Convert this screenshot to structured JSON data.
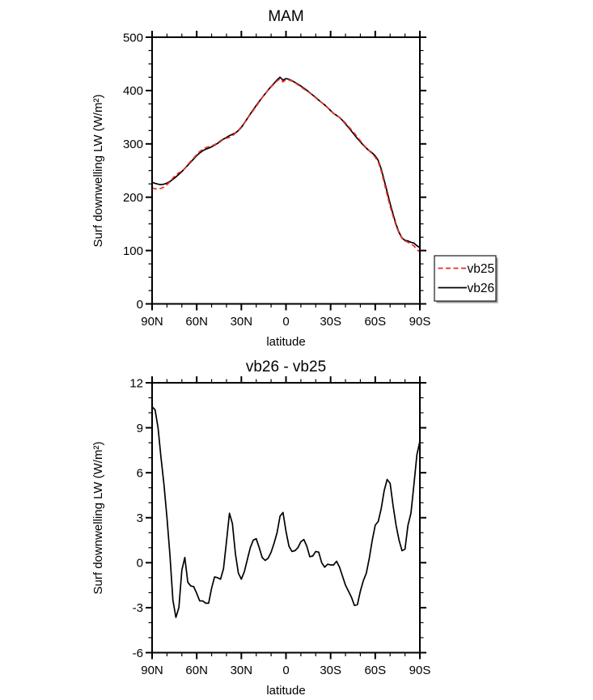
{
  "figure": {
    "background": "#ffffff",
    "accent_red": "#ee2c2c",
    "line_black": "#000000"
  },
  "chart_data": [
    {
      "type": "line",
      "title": "MAM",
      "x_axis": {
        "label": "latitude",
        "tick_lats": [
          90,
          60,
          30,
          0,
          -30,
          -60,
          -90
        ],
        "tick_labels": [
          "90N",
          "60N",
          "30N",
          "0",
          "30S",
          "60S",
          "90S"
        ],
        "minor_step_deg": 10,
        "lim": [
          90,
          -90
        ]
      },
      "y_axis": {
        "label": "Surf downwelling LW (W/m²)",
        "lim": [
          0,
          500
        ],
        "ticks": [
          0,
          100,
          200,
          300,
          400,
          500
        ],
        "minor_step": 25
      },
      "legend": {
        "position": "outside-right",
        "entries": [
          {
            "label": "vb25",
            "color": "#ee2c2c",
            "style": "dashed"
          },
          {
            "label": "vb26",
            "color": "#000000",
            "style": "solid"
          }
        ]
      },
      "x": [
        90,
        88,
        86,
        84,
        82,
        80,
        78,
        76,
        74,
        72,
        70,
        68,
        66,
        64,
        62,
        60,
        58,
        56,
        54,
        52,
        50,
        48,
        46,
        44,
        42,
        40,
        38,
        36,
        34,
        32,
        30,
        28,
        26,
        24,
        22,
        20,
        18,
        16,
        14,
        12,
        10,
        8,
        6,
        4,
        2,
        0,
        -2,
        -4,
        -6,
        -8,
        -10,
        -12,
        -14,
        -16,
        -18,
        -20,
        -22,
        -24,
        -26,
        -28,
        -30,
        -32,
        -34,
        -36,
        -38,
        -40,
        -42,
        -44,
        -46,
        -48,
        -50,
        -52,
        -54,
        -56,
        -58,
        -60,
        -62,
        -64,
        -66,
        -68,
        -70,
        -72,
        -74,
        -76,
        -78,
        -80,
        -82,
        -84,
        -86,
        -88,
        -90
      ],
      "series": [
        {
          "name": "vb25",
          "color": "#ee2c2c",
          "style": "dashed",
          "values": [
            217.6,
            215.8,
            215.5,
            216.5,
            219.3,
            223.5,
            229,
            236,
            241.7,
            246,
            248.5,
            253.7,
            261.3,
            267.6,
            273.6,
            280.1,
            285.6,
            289.6,
            292.7,
            294.7,
            296.2,
            298.5,
            302,
            306.1,
            309.4,
            310.6,
            312.2,
            315.4,
            319.9,
            325.7,
            332.1,
            339.6,
            347.3,
            355,
            362.5,
            370.4,
            378.5,
            386.7,
            393.9,
            400.7,
            406.8,
            412.2,
            418,
            421.9,
            416.2,
            420.4,
            419.9,
            417.8,
            414.7,
            411,
            407.1,
            403,
            399.4,
            395.6,
            391.1,
            386.3,
            381.3,
            377.5,
            373.3,
            368.1,
            362.7,
            357.2,
            353.4,
            349.8,
            344.9,
            339,
            332.9,
            326.3,
            319.9,
            312.8,
            305.9,
            298.7,
            292.7,
            286.7,
            281.5,
            275,
            266.3,
            249.4,
            227.2,
            204.5,
            182.7,
            164.2,
            146.5,
            132.5,
            122.7,
            118.1,
            115.5,
            112.2,
            108.8,
            101.8,
            97.4
          ]
        },
        {
          "name": "vb26",
          "color": "#000000",
          "style": "solid",
          "values": [
            228,
            226,
            224.5,
            223.5,
            224.5,
            226.5,
            229.5,
            233.5,
            238,
            243,
            248,
            254,
            260,
            266,
            272,
            278,
            283,
            287,
            290,
            292,
            294.5,
            297.5,
            301,
            305,
            309,
            312,
            315.5,
            318,
            320.5,
            325,
            331,
            339,
            347.5,
            356,
            364,
            372,
            379.5,
            387,
            394,
            401,
            407.5,
            413.5,
            420,
            425,
            419.5,
            422.5,
            421,
            418.5,
            415.5,
            412,
            408.5,
            404.5,
            400.5,
            396,
            391.5,
            387,
            382,
            377.5,
            373,
            368,
            362.5,
            357,
            353.5,
            349.5,
            344,
            337.5,
            331,
            324,
            317,
            310,
            304,
            297.5,
            292,
            287,
            283,
            277.5,
            269,
            253,
            232,
            210,
            188,
            168,
            149,
            134,
            123.5,
            119,
            118,
            115.5,
            114,
            109,
            105.5
          ]
        }
      ]
    },
    {
      "type": "line",
      "title": "vb26 - vb25",
      "x_axis": {
        "label": "latitude",
        "tick_lats": [
          90,
          60,
          30,
          0,
          -30,
          -60,
          -90
        ],
        "tick_labels": [
          "90N",
          "60N",
          "30N",
          "0",
          "30S",
          "60S",
          "90S"
        ],
        "minor_step_deg": 10,
        "lim": [
          90,
          -90
        ]
      },
      "y_axis": {
        "label": "Surf downwelling LW (W/m²)",
        "lim": [
          -6,
          12
        ],
        "ticks": [
          -6,
          -3,
          0,
          3,
          6,
          9,
          12
        ],
        "minor_step": 1
      },
      "x": [
        90,
        88,
        86,
        84,
        82,
        80,
        78,
        76,
        74,
        72,
        70,
        68,
        66,
        64,
        62,
        60,
        58,
        56,
        54,
        52,
        50,
        48,
        46,
        44,
        42,
        40,
        38,
        36,
        34,
        32,
        30,
        28,
        26,
        24,
        22,
        20,
        18,
        16,
        14,
        12,
        10,
        8,
        6,
        4,
        2,
        0,
        -2,
        -4,
        -6,
        -8,
        -10,
        -12,
        -14,
        -16,
        -18,
        -20,
        -22,
        -24,
        -26,
        -28,
        -30,
        -32,
        -34,
        -36,
        -38,
        -40,
        -42,
        -44,
        -46,
        -48,
        -50,
        -52,
        -54,
        -56,
        -58,
        -60,
        -62,
        -64,
        -66,
        -68,
        -70,
        -72,
        -74,
        -76,
        -78,
        -80,
        -82,
        -84,
        -86,
        -88,
        -90
      ],
      "series": [
        {
          "name": "vb26 - vb25",
          "color": "#000000",
          "style": "solid",
          "values": [
            10.4,
            10.2,
            9,
            7,
            5.2,
            3,
            0.5,
            -2.5,
            -3.65,
            -3,
            -0.5,
            0.35,
            -1.3,
            -1.55,
            -1.6,
            -2.05,
            -2.55,
            -2.55,
            -2.7,
            -2.7,
            -1.7,
            -0.95,
            -1,
            -1.1,
            -0.4,
            1.4,
            3.3,
            2.6,
            0.6,
            -0.7,
            -1.1,
            -0.6,
            0.2,
            1,
            1.5,
            1.6,
            1,
            0.35,
            0.15,
            0.3,
            0.7,
            1.3,
            2,
            3.1,
            3.35,
            2.1,
            1.1,
            0.75,
            0.8,
            1,
            1.4,
            1.55,
            1.1,
            0.4,
            0.45,
            0.75,
            0.7,
            0,
            -0.3,
            -0.1,
            -0.15,
            -0.15,
            0.1,
            -0.3,
            -0.9,
            -1.5,
            -1.9,
            -2.3,
            -2.85,
            -2.8,
            -1.9,
            -1.2,
            -0.7,
            0.3,
            1.5,
            2.5,
            2.75,
            3.6,
            4.8,
            5.55,
            5.3,
            3.8,
            2.5,
            1.5,
            0.8,
            0.9,
            2.5,
            3.3,
            5.2,
            7.2,
            8.1
          ]
        }
      ]
    }
  ]
}
